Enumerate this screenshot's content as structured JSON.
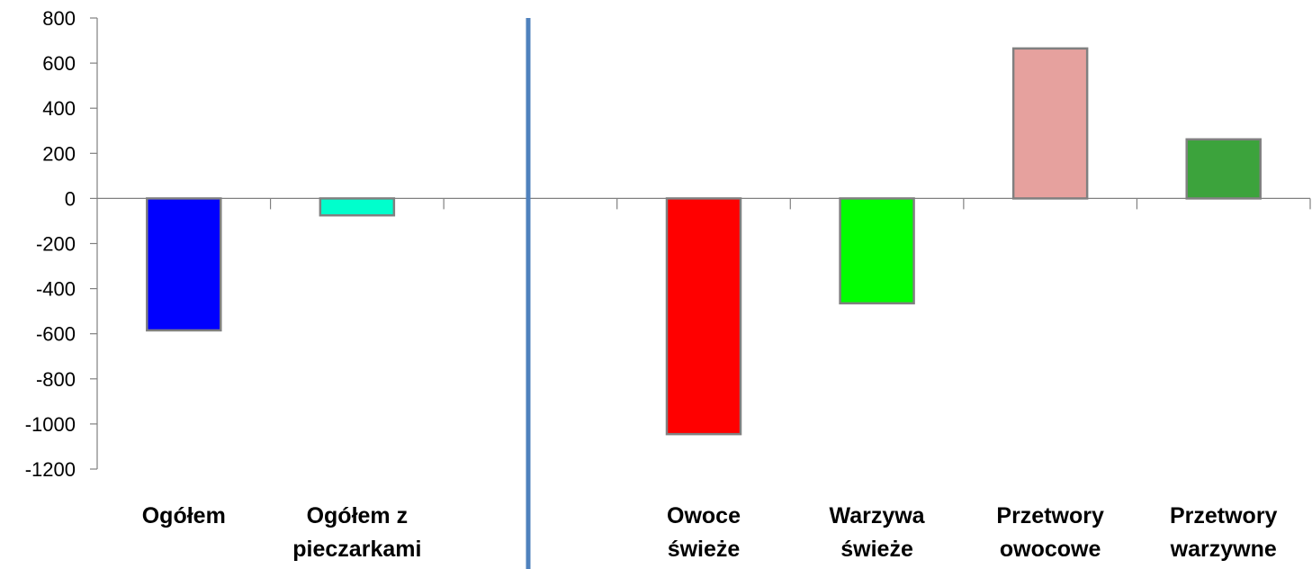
{
  "chart_data": {
    "type": "bar",
    "title": "",
    "xlabel": "",
    "ylabel": "",
    "ylim": [
      -1200,
      800
    ],
    "yticks": [
      800,
      600,
      400,
      200,
      0,
      -200,
      -400,
      -600,
      -800,
      -1000,
      -1200
    ],
    "ytick_labels": [
      "800",
      "600",
      "400",
      "200",
      "0",
      "-200",
      "-400",
      "-600",
      "-800",
      "-1000",
      "-1200"
    ],
    "grid": false,
    "legend": "none",
    "slots": 7,
    "separator_after_slot": 3,
    "separator_color": "#4F81BD",
    "bar_edge_color": "#808080",
    "bars": [
      {
        "slot": 1,
        "category": [
          "Ogółem"
        ],
        "value": -585,
        "color": "#0000FF"
      },
      {
        "slot": 2,
        "category": [
          "Ogółem z",
          "pieczarkami"
        ],
        "value": -75,
        "color": "#00FFCC"
      },
      {
        "slot": 4,
        "category": [
          "Owoce",
          "świeże"
        ],
        "value": -1045,
        "color": "#FF0000"
      },
      {
        "slot": 5,
        "category": [
          "Warzywa",
          "świeże"
        ],
        "value": -465,
        "color": "#00FF00"
      },
      {
        "slot": 6,
        "category": [
          "Przetwory",
          "owocowe"
        ],
        "value": 665,
        "color": "#E6A19E"
      },
      {
        "slot": 7,
        "category": [
          "Przetwory",
          "warzywne"
        ],
        "value": 262,
        "color": "#3CA33C"
      }
    ]
  }
}
